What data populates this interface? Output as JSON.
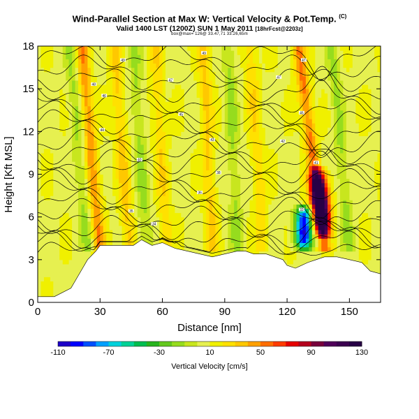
{
  "header": {
    "title": "Wind-Parallel Section at Max W: Vertical Velocity & Pot.Temp.",
    "copyright": "(C)",
    "valid_line": "Valid 1400 LST (1200Z) SUN 1 May 2011",
    "forecast": "[18hrFcst@2203z]",
    "footer_line": "box@max= 126@ 33.47,71 33.26,65m"
  },
  "colors": {
    "background": "#ffffff",
    "terrain": "#ffffff",
    "contour": "#000000"
  },
  "chart_data": {
    "type": "heatmap",
    "xlabel": "Distance [nm]",
    "ylabel": "Height [Kft MSL]",
    "xlim": [
      0,
      165
    ],
    "ylim": [
      0,
      18
    ],
    "x_ticks": [
      "0",
      "30",
      "60",
      "90",
      "120",
      "150"
    ],
    "x_tick_values": [
      0,
      30,
      60,
      90,
      120,
      150
    ],
    "y_ticks": [
      "0",
      "3",
      "6",
      "9",
      "12",
      "15",
      "18"
    ],
    "y_tick_values": [
      0,
      3,
      6,
      9,
      12,
      15,
      18
    ],
    "colorbar": {
      "title": "Vertical Velocity [cm/s]",
      "min": -110,
      "max": 130,
      "step": 10,
      "tick_labels": [
        "-110",
        "-70",
        "-30",
        "10",
        "50",
        "90",
        "130"
      ],
      "tick_values": [
        -110,
        -70,
        -30,
        10,
        50,
        90,
        130
      ],
      "colors": [
        "#1e00c8",
        "#0000ff",
        "#0050ff",
        "#00a0ff",
        "#00d2dc",
        "#00d296",
        "#00be50",
        "#28b41e",
        "#64c81e",
        "#96dc1e",
        "#c8e61e",
        "#e6f050",
        "#f0f000",
        "#ffe100",
        "#ffc800",
        "#ffa000",
        "#ff6e00",
        "#ff3c00",
        "#e60000",
        "#b4001e",
        "#78003c",
        "#50005a",
        "#3c0050",
        "#280046"
      ]
    },
    "terrain_profile": {
      "x": [
        0,
        8,
        16,
        22,
        24,
        28,
        30,
        34,
        40,
        46,
        50,
        55,
        60,
        66,
        72,
        78,
        84,
        90,
        96,
        100,
        104,
        110,
        114,
        118,
        120,
        124,
        130,
        134,
        138,
        144,
        150,
        156,
        160,
        165
      ],
      "height": [
        0.4,
        0.4,
        1.0,
        2.5,
        3.0,
        3.6,
        4.0,
        4.0,
        4.0,
        4.0,
        4.4,
        4.0,
        4.2,
        3.8,
        3.6,
        3.4,
        3.2,
        3.4,
        3.6,
        3.6,
        3.4,
        3.4,
        3.2,
        3.0,
        2.6,
        2.4,
        2.8,
        3.0,
        3.2,
        3.2,
        3.0,
        2.8,
        2.2,
        2.0
      ]
    },
    "vertical_velocity_features": [
      {
        "x": 30,
        "z_bottom": 3.5,
        "z_top": 18,
        "tilt_nm_per_kft": -0.6,
        "w": 40
      },
      {
        "x": 44,
        "z_bottom": 4.0,
        "z_top": 18,
        "tilt_nm_per_kft": -0.5,
        "w": 25
      },
      {
        "x": 62,
        "z_bottom": 4.0,
        "z_top": 18,
        "tilt_nm_per_kft": -0.4,
        "w": 20
      },
      {
        "x": 84,
        "z_bottom": 4.0,
        "z_top": 18,
        "tilt_nm_per_kft": -0.3,
        "w": 25
      },
      {
        "x": 108,
        "z_bottom": 4.0,
        "z_top": 18,
        "tilt_nm_per_kft": -0.4,
        "w": 20
      },
      {
        "x": 138,
        "z_bottom": 4.0,
        "z_top": 18,
        "tilt_nm_per_kft": -0.9,
        "w": 45
      },
      {
        "x": 137,
        "z_bottom": 5.0,
        "z_top": 9.0,
        "tilt_nm_per_kft": -0.5,
        "w": 126
      },
      {
        "x": 128,
        "z_bottom": 4.0,
        "z_top": 6.5,
        "tilt_nm_per_kft": 0.0,
        "w": -105
      },
      {
        "x": 24,
        "z_bottom": 4.0,
        "z_top": 18,
        "tilt_nm_per_kft": -0.6,
        "w": -20
      },
      {
        "x": 52,
        "z_bottom": 4.0,
        "z_top": 18,
        "tilt_nm_per_kft": -0.4,
        "w": -20
      },
      {
        "x": 96,
        "z_bottom": 4.0,
        "z_top": 18,
        "tilt_nm_per_kft": -0.3,
        "w": -20
      },
      {
        "x": 150,
        "z_bottom": 4.0,
        "z_top": 18,
        "tilt_nm_per_kft": -0.6,
        "w": -20
      }
    ],
    "theta_contours": {
      "base_height_kft": [
        3.5,
        4.1,
        4.7,
        5.3,
        5.9,
        6.5,
        7.1,
        7.8,
        8.5,
        9.2,
        9.9,
        10.6,
        11.3,
        12.0,
        12.7,
        13.4,
        14.1,
        14.9,
        15.7,
        16.5,
        17.3
      ]
    },
    "contour_labels": [
      {
        "x": 41,
        "z": 17.0,
        "text": "49"
      },
      {
        "x": 80,
        "z": 17.5,
        "text": "49"
      },
      {
        "x": 128,
        "z": 17.0,
        "text": "47"
      },
      {
        "x": 27,
        "z": 15.3,
        "text": "48"
      },
      {
        "x": 64,
        "z": 15.6,
        "text": "47"
      },
      {
        "x": 116,
        "z": 15.8,
        "text": "47"
      },
      {
        "x": 32,
        "z": 14.5,
        "text": "46"
      },
      {
        "x": 69,
        "z": 13.2,
        "text": "45"
      },
      {
        "x": 127,
        "z": 13.3,
        "text": "45"
      },
      {
        "x": 31,
        "z": 12.1,
        "text": "44"
      },
      {
        "x": 84,
        "z": 11.4,
        "text": "43"
      },
      {
        "x": 118,
        "z": 11.3,
        "text": "42"
      },
      {
        "x": 49,
        "z": 10.0,
        "text": "40"
      },
      {
        "x": 87,
        "z": 9.1,
        "text": "38"
      },
      {
        "x": 134,
        "z": 9.8,
        "text": "41"
      },
      {
        "x": 78,
        "z": 7.7,
        "text": "36"
      },
      {
        "x": 45,
        "z": 6.4,
        "text": "35"
      },
      {
        "x": 56,
        "z": 5.5,
        "text": "34"
      },
      {
        "x": 127,
        "z": 6.5,
        "text": "33"
      }
    ]
  }
}
